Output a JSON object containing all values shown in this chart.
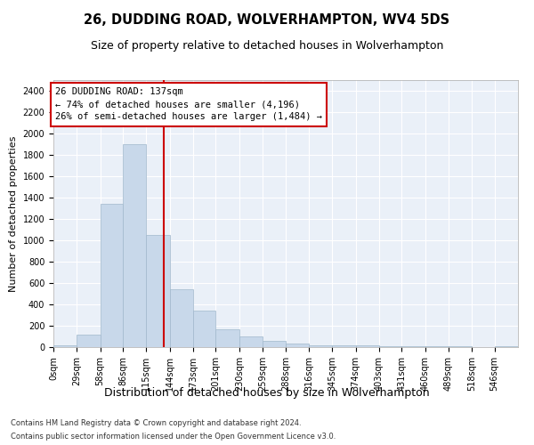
{
  "title": "26, DUDDING ROAD, WOLVERHAMPTON, WV4 5DS",
  "subtitle": "Size of property relative to detached houses in Wolverhampton",
  "xlabel": "Distribution of detached houses by size in Wolverhampton",
  "ylabel": "Number of detached properties",
  "bar_color": "#c8d8ea",
  "bar_edge_color": "#a0b8cc",
  "background_color": "#eaf0f8",
  "grid_color": "#ffffff",
  "vline_x": 137,
  "vline_color": "#cc0000",
  "annotation_line1": "26 DUDDING ROAD: 137sqm",
  "annotation_line2": "← 74% of detached houses are smaller (4,196)",
  "annotation_line3": "26% of semi-detached houses are larger (1,484) →",
  "annotation_box_facecolor": "#ffffff",
  "annotation_box_edgecolor": "#cc0000",
  "footnote1": "Contains HM Land Registry data © Crown copyright and database right 2024.",
  "footnote2": "Contains public sector information licensed under the Open Government Licence v3.0.",
  "bin_edges": [
    0,
    29,
    58,
    86,
    115,
    144,
    173,
    201,
    230,
    259,
    288,
    316,
    345,
    374,
    403,
    431,
    460,
    489,
    518,
    546,
    575
  ],
  "bar_heights": [
    15,
    120,
    1340,
    1900,
    1050,
    540,
    340,
    170,
    100,
    55,
    30,
    20,
    20,
    15,
    10,
    5,
    10,
    5,
    0,
    5
  ],
  "ylim": [
    0,
    2500
  ],
  "yticks": [
    0,
    200,
    400,
    600,
    800,
    1000,
    1200,
    1400,
    1600,
    1800,
    2000,
    2200,
    2400
  ],
  "title_fontsize": 10.5,
  "subtitle_fontsize": 9,
  "xlabel_fontsize": 9,
  "ylabel_fontsize": 8,
  "tick_fontsize": 7,
  "annotation_fontsize": 7.5,
  "footnote_fontsize": 6
}
